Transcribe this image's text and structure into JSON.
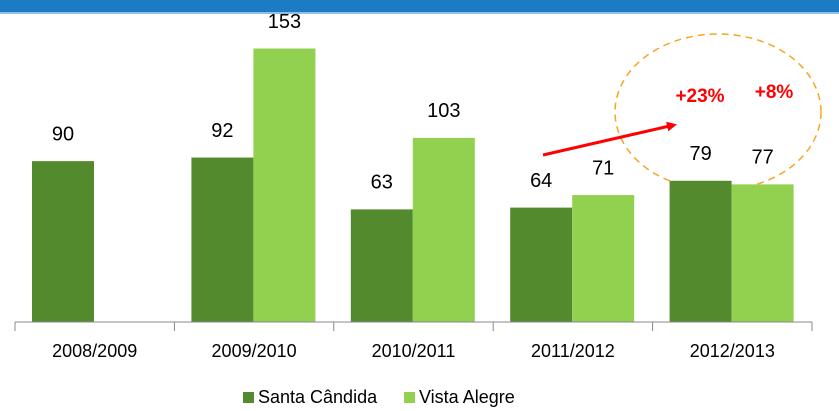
{
  "chart_data": {
    "type": "bar",
    "categories": [
      "2008/2009",
      "2009/2010",
      "2010/2011",
      "2011/2012",
      "2012/2013"
    ],
    "series": [
      {
        "name": "Santa Cândida",
        "color": "#548a2e",
        "values": [
          90,
          92,
          63,
          64,
          79
        ]
      },
      {
        "name": "Vista Alegre",
        "color": "#92d050",
        "values": [
          null,
          153,
          103,
          71,
          77
        ]
      }
    ],
    "ylim": [
      0,
      160
    ],
    "legend": "bottom",
    "annotations": [
      "+23%",
      "+8%"
    ]
  }
}
